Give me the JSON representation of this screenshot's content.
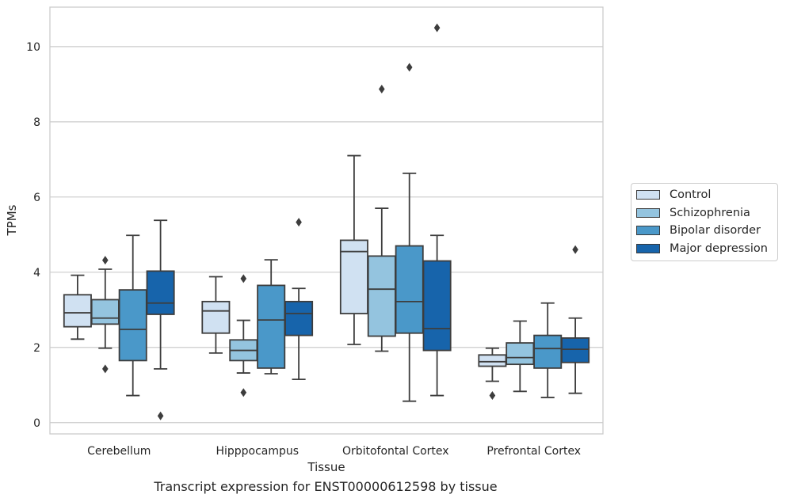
{
  "chart_data": {
    "type": "box",
    "caption": "Transcript expression for ENST00000612598 by tissue",
    "xlabel": "Tissue",
    "ylabel": "TPMs",
    "ylim": [
      -0.3,
      11.05
    ],
    "yticks": [
      0,
      2,
      4,
      6,
      8,
      10
    ],
    "grid": "horizontal",
    "legend_position": "right",
    "categories": [
      "Cerebellum",
      "Hipppocampus",
      "Orbitofontal Cortex",
      "Prefrontal Cortex"
    ],
    "series": [
      {
        "name": "Control",
        "color": "#d0e1f2",
        "boxes": [
          {
            "whislo": 2.22,
            "q1": 2.55,
            "med": 2.92,
            "q3": 3.4,
            "whishi": 3.92,
            "fliers": []
          },
          {
            "whislo": 1.85,
            "q1": 2.38,
            "med": 2.97,
            "q3": 3.22,
            "whishi": 3.88,
            "fliers": []
          },
          {
            "whislo": 2.08,
            "q1": 2.9,
            "med": 4.55,
            "q3": 4.85,
            "whishi": 7.1,
            "fliers": []
          },
          {
            "whislo": 1.1,
            "q1": 1.5,
            "med": 1.62,
            "q3": 1.8,
            "whishi": 1.98,
            "fliers": [
              0.72
            ]
          }
        ]
      },
      {
        "name": "Schizophrenia",
        "color": "#94c4df",
        "boxes": [
          {
            "whislo": 1.98,
            "q1": 2.62,
            "med": 2.78,
            "q3": 3.27,
            "whishi": 4.08,
            "fliers": [
              4.32,
              1.43
            ]
          },
          {
            "whislo": 1.32,
            "q1": 1.65,
            "med": 1.92,
            "q3": 2.2,
            "whishi": 2.72,
            "fliers": [
              3.83,
              0.8
            ]
          },
          {
            "whislo": 1.9,
            "q1": 2.3,
            "med": 3.55,
            "q3": 4.43,
            "whishi": 5.7,
            "fliers": [
              8.87
            ]
          },
          {
            "whislo": 0.83,
            "q1": 1.55,
            "med": 1.73,
            "q3": 2.12,
            "whishi": 2.7,
            "fliers": []
          }
        ]
      },
      {
        "name": "Bipolar disorder",
        "color": "#4a98c9",
        "boxes": [
          {
            "whislo": 0.72,
            "q1": 1.65,
            "med": 2.48,
            "q3": 3.53,
            "whishi": 4.98,
            "fliers": []
          },
          {
            "whislo": 1.3,
            "q1": 1.45,
            "med": 2.73,
            "q3": 3.65,
            "whishi": 4.33,
            "fliers": []
          },
          {
            "whislo": 0.57,
            "q1": 2.38,
            "med": 3.22,
            "q3": 4.7,
            "whishi": 6.63,
            "fliers": [
              9.45
            ]
          },
          {
            "whislo": 0.67,
            "q1": 1.45,
            "med": 1.97,
            "q3": 2.32,
            "whishi": 3.18,
            "fliers": []
          }
        ]
      },
      {
        "name": "Major depression",
        "color": "#1764ab",
        "boxes": [
          {
            "whislo": 1.43,
            "q1": 2.88,
            "med": 3.18,
            "q3": 4.03,
            "whishi": 5.38,
            "fliers": [
              0.18
            ]
          },
          {
            "whislo": 1.15,
            "q1": 2.32,
            "med": 2.9,
            "q3": 3.22,
            "whishi": 3.57,
            "fliers": [
              5.33
            ]
          },
          {
            "whislo": 0.72,
            "q1": 1.92,
            "med": 2.5,
            "q3": 4.3,
            "whishi": 4.98,
            "fliers": [
              10.5
            ]
          },
          {
            "whislo": 0.78,
            "q1": 1.6,
            "med": 1.95,
            "q3": 2.25,
            "whishi": 2.78,
            "fliers": [
              4.6
            ]
          }
        ]
      }
    ]
  }
}
